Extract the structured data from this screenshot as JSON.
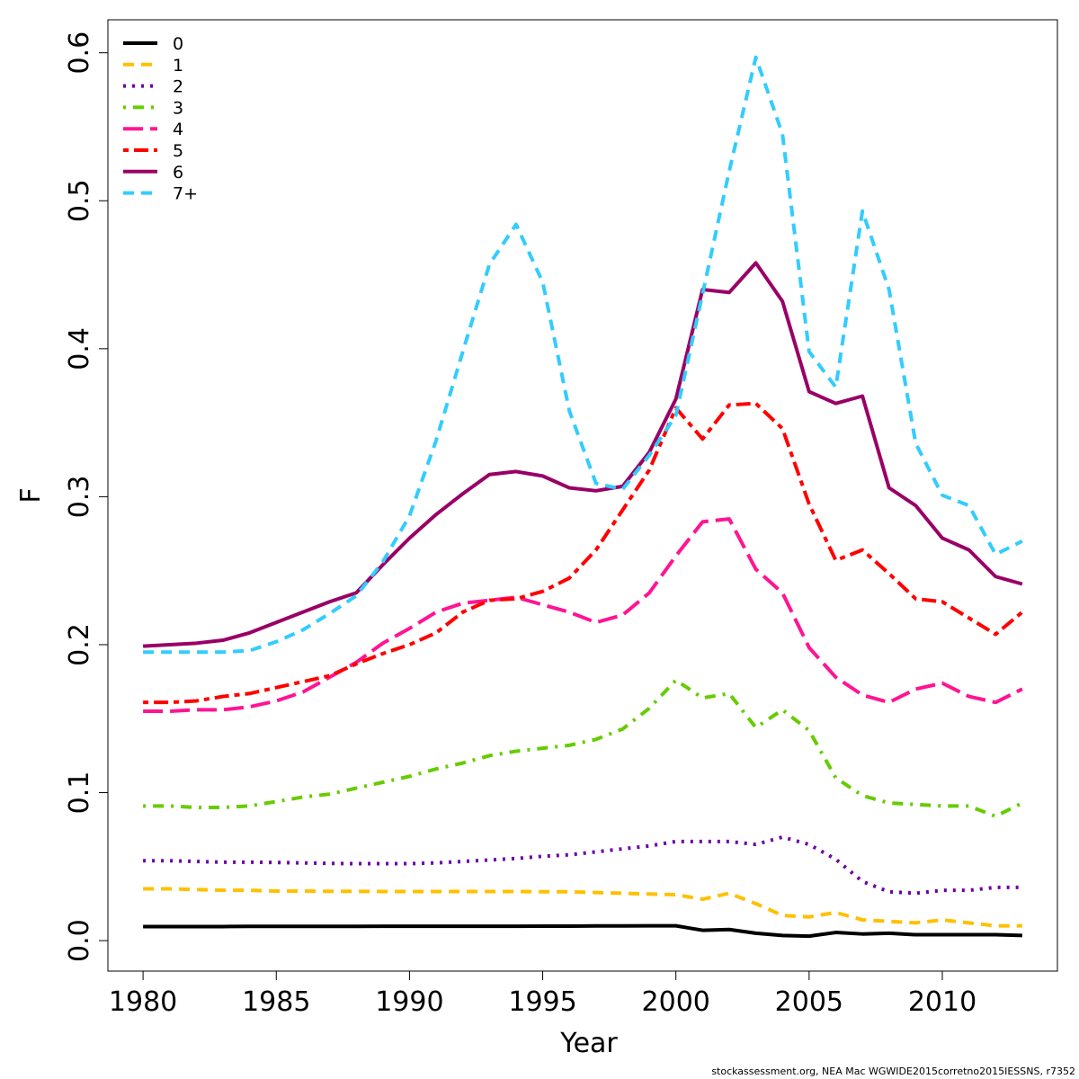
{
  "chart_data": {
    "type": "line",
    "x_label": "Year",
    "y_label": "F",
    "footnote": "stockassessment.org, NEA  Mac  WGWIDE2015corretno2015IESSNS, r7352",
    "x": [
      1980,
      1981,
      1982,
      1983,
      1984,
      1985,
      1986,
      1987,
      1988,
      1989,
      1990,
      1991,
      1992,
      1993,
      1994,
      1995,
      1996,
      1997,
      1998,
      1999,
      2000,
      2001,
      2002,
      2003,
      2004,
      2005,
      2006,
      2007,
      2008,
      2009,
      2010,
      2011,
      2012,
      2013
    ],
    "xlim": [
      1978.68,
      2014.32
    ],
    "xticks": [
      1980,
      1985,
      1990,
      1995,
      2000,
      2005,
      2010
    ],
    "ylim": [
      -0.0206,
      0.6223
    ],
    "yticks": [
      {
        "value": 0,
        "label": "0.0"
      },
      0.1,
      0.2,
      0.3,
      0.4,
      0.5,
      0.6
    ],
    "legend": "top-left",
    "series": [
      {
        "name": "0",
        "color": "#000000",
        "dash": "solid",
        "values": [
          0.0095,
          0.0095,
          0.0095,
          0.0095,
          0.0096,
          0.0096,
          0.0096,
          0.0096,
          0.0096,
          0.0097,
          0.0097,
          0.0097,
          0.0097,
          0.0097,
          0.0097,
          0.0098,
          0.0098,
          0.0099,
          0.0099,
          0.01,
          0.01,
          0.007,
          0.0075,
          0.005,
          0.0035,
          0.003,
          0.0055,
          0.0045,
          0.005,
          0.004,
          0.004,
          0.004,
          0.004,
          0.0035
        ]
      },
      {
        "name": "1",
        "color": "#ffc000",
        "dash": "dashed",
        "values": [
          0.035,
          0.035,
          0.0345,
          0.034,
          0.034,
          0.0335,
          0.0335,
          0.0333,
          0.0333,
          0.0332,
          0.0332,
          0.0332,
          0.0332,
          0.0332,
          0.0332,
          0.033,
          0.033,
          0.0325,
          0.032,
          0.0315,
          0.031,
          0.028,
          0.032,
          0.025,
          0.017,
          0.016,
          0.019,
          0.014,
          0.013,
          0.012,
          0.014,
          0.012,
          0.01,
          0.01
        ]
      },
      {
        "name": "2",
        "color": "#6a00a8",
        "dash": "dotted",
        "values": [
          0.054,
          0.054,
          0.0535,
          0.053,
          0.053,
          0.0528,
          0.0525,
          0.0522,
          0.052,
          0.052,
          0.052,
          0.0525,
          0.0535,
          0.0545,
          0.0555,
          0.057,
          0.058,
          0.06,
          0.062,
          0.064,
          0.067,
          0.067,
          0.067,
          0.065,
          0.07,
          0.065,
          0.055,
          0.04,
          0.033,
          0.032,
          0.034,
          0.034,
          0.036,
          0.036
        ]
      },
      {
        "name": "3",
        "color": "#66cc00",
        "dash": "dotdash",
        "values": [
          0.091,
          0.091,
          0.09,
          0.09,
          0.091,
          0.094,
          0.097,
          0.099,
          0.103,
          0.107,
          0.111,
          0.116,
          0.12,
          0.125,
          0.128,
          0.13,
          0.132,
          0.136,
          0.143,
          0.157,
          0.176,
          0.164,
          0.167,
          0.144,
          0.156,
          0.142,
          0.11,
          0.098,
          0.093,
          0.092,
          0.091,
          0.091,
          0.084,
          0.093
        ]
      },
      {
        "name": "4",
        "color": "#ff1493",
        "dash": "longdash",
        "values": [
          0.155,
          0.155,
          0.156,
          0.156,
          0.158,
          0.162,
          0.168,
          0.178,
          0.188,
          0.201,
          0.211,
          0.222,
          0.228,
          0.23,
          0.232,
          0.227,
          0.222,
          0.215,
          0.22,
          0.235,
          0.26,
          0.283,
          0.285,
          0.251,
          0.235,
          0.198,
          0.178,
          0.166,
          0.161,
          0.17,
          0.174,
          0.165,
          0.161,
          0.17
        ]
      },
      {
        "name": "5",
        "color": "#ff0000",
        "dash": "twodash",
        "values": [
          0.161,
          0.161,
          0.162,
          0.165,
          0.167,
          0.171,
          0.175,
          0.179,
          0.187,
          0.194,
          0.2,
          0.208,
          0.222,
          0.23,
          0.231,
          0.236,
          0.245,
          0.264,
          0.291,
          0.318,
          0.36,
          0.339,
          0.362,
          0.363,
          0.346,
          0.295,
          0.257,
          0.264,
          0.248,
          0.231,
          0.229,
          0.218,
          0.207,
          0.222
        ]
      },
      {
        "name": "6",
        "color": "#990066",
        "dash": "solid",
        "values": [
          0.199,
          0.2,
          0.201,
          0.203,
          0.208,
          0.215,
          0.222,
          0.229,
          0.235,
          0.254,
          0.272,
          0.288,
          0.302,
          0.315,
          0.317,
          0.314,
          0.306,
          0.304,
          0.307,
          0.33,
          0.366,
          0.44,
          0.438,
          0.458,
          0.432,
          0.371,
          0.363,
          0.368,
          0.306,
          0.294,
          0.272,
          0.264,
          0.246,
          0.241
        ]
      },
      {
        "name": "7+",
        "color": "#33ccff",
        "dash": "dashed",
        "values": [
          0.195,
          0.195,
          0.195,
          0.195,
          0.196,
          0.202,
          0.21,
          0.221,
          0.233,
          0.256,
          0.287,
          0.338,
          0.398,
          0.457,
          0.484,
          0.445,
          0.358,
          0.309,
          0.305,
          0.328,
          0.355,
          0.437,
          0.52,
          0.597,
          0.545,
          0.398,
          0.374,
          0.493,
          0.44,
          0.336,
          0.301,
          0.294,
          0.261,
          0.27
        ]
      }
    ]
  }
}
